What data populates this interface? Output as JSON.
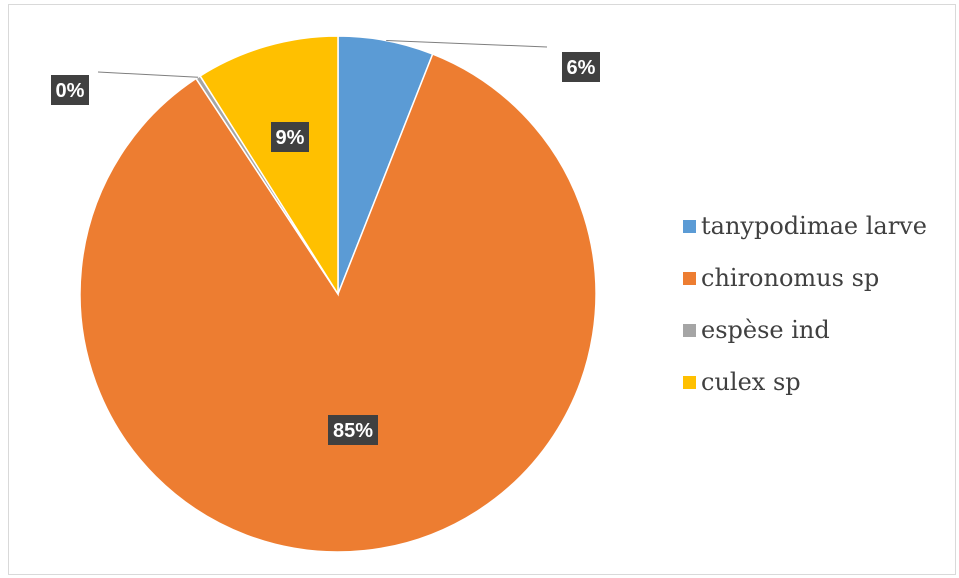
{
  "chart_data": {
    "type": "pie",
    "categories": [
      "tanypodimae larve",
      "chironomus sp",
      "espèse ind",
      "culex sp"
    ],
    "values": [
      6,
      85,
      0.3,
      9
    ],
    "data_labels": [
      "6%",
      "85%",
      "0%",
      "9%"
    ],
    "colors": [
      "#5b9bd5",
      "#ed7d31",
      "#a5a5a5",
      "#ffc000"
    ],
    "legend_position": "right",
    "start_angle_deg": 0,
    "direction": "clockwise"
  }
}
